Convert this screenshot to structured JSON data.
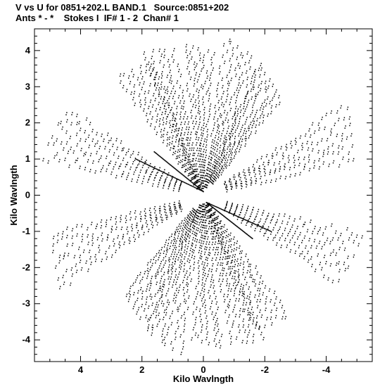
{
  "chart_data": {
    "type": "scatter",
    "title": "V vs U for 0851+202.L BAND.1   Source:0851+202",
    "subtitle": "Ants * - *    Stokes I  IF# 1 - 2  Chan# 1",
    "xlabel": "Kilo Wavlngth",
    "ylabel": "Kilo Wavlngth",
    "xlim": [
      5.5,
      -5.5
    ],
    "ylim": [
      -4.6,
      4.6
    ],
    "x_ticks": [
      4,
      2,
      0,
      -2,
      -4
    ],
    "x_tick_labels": [
      "4",
      "2",
      "0",
      "-2",
      "-4"
    ],
    "y_ticks": [
      4,
      3,
      2,
      1,
      0,
      -1,
      -2,
      -3,
      -4
    ],
    "y_tick_labels": [
      "4",
      "3",
      "2",
      "1",
      "0",
      "-1",
      "-2",
      "-3",
      "-4"
    ],
    "grid": false,
    "marker": "dot",
    "color": "#000000",
    "uv_tracks": [
      {
        "angle_deg": 58,
        "r_min": 0.3,
        "r_max": 4.3,
        "n_tracks": 6
      },
      {
        "angle_deg": 70,
        "r_min": 0.3,
        "r_max": 4.4,
        "n_tracks": 5
      },
      {
        "angle_deg": 88,
        "r_min": 0.25,
        "r_max": 4.2,
        "n_tracks": 5
      },
      {
        "angle_deg": 108,
        "r_min": 0.3,
        "r_max": 4.4,
        "n_tracks": 6
      },
      {
        "angle_deg": 125,
        "r_min": 0.5,
        "r_max": 4.0,
        "n_tracks": 6
      },
      {
        "angle_deg": 160,
        "r_min": 0.8,
        "r_max": 5.3,
        "n_tracks": 6
      },
      {
        "angle_deg": 200,
        "r_min": 0.8,
        "r_max": 5.3,
        "n_tracks": 6
      },
      {
        "angle_deg": 238,
        "r_min": 0.3,
        "r_max": 4.3,
        "n_tracks": 6
      },
      {
        "angle_deg": 250,
        "r_min": 0.3,
        "r_max": 4.4,
        "n_tracks": 5
      },
      {
        "angle_deg": 268,
        "r_min": 0.25,
        "r_max": 4.2,
        "n_tracks": 5
      },
      {
        "angle_deg": 288,
        "r_min": 0.3,
        "r_max": 4.4,
        "n_tracks": 6
      },
      {
        "angle_deg": 305,
        "r_min": 0.5,
        "r_max": 4.0,
        "n_tracks": 6
      },
      {
        "angle_deg": 340,
        "r_min": 0.8,
        "r_max": 5.3,
        "n_tracks": 6
      },
      {
        "angle_deg": 20,
        "r_min": 0.8,
        "r_max": 5.3,
        "n_tracks": 6
      }
    ],
    "dense_lines": [
      {
        "from": [
          0.0,
          0.1
        ],
        "to": [
          2.2,
          1.0
        ]
      },
      {
        "from": [
          0.0,
          0.1
        ],
        "to": [
          1.6,
          1.2
        ]
      },
      {
        "from": [
          -0.1,
          -0.2
        ],
        "to": [
          -2.2,
          -1.0
        ]
      },
      {
        "from": [
          -0.1,
          -0.2
        ],
        "to": [
          -1.6,
          -1.2
        ]
      }
    ]
  }
}
